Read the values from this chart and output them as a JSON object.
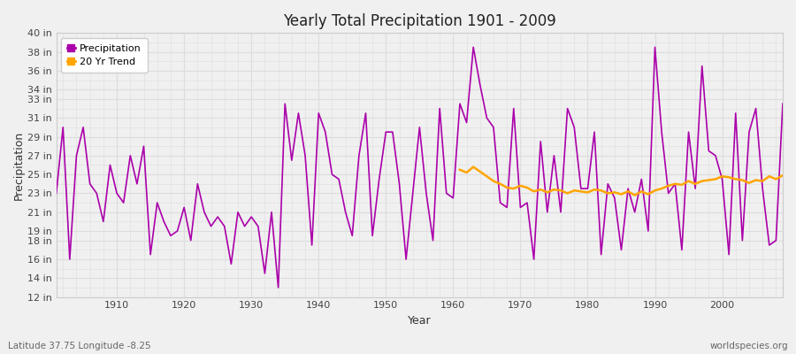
{
  "title": "Yearly Total Precipitation 1901 - 2009",
  "xlabel": "Year",
  "ylabel": "Precipitation",
  "footer_left": "Latitude 37.75 Longitude -8.25",
  "footer_right": "worldspecies.org",
  "precip_color": "#AA00AA",
  "trend_color": "#FFA500",
  "bg_color": "#F0F0F0",
  "plot_bg_color": "#F0F0F0",
  "grid_color": "#DDDDDD",
  "ylim_min": 12,
  "ylim_max": 40,
  "ytick_values": [
    12,
    14,
    16,
    18,
    19,
    21,
    23,
    25,
    27,
    29,
    31,
    33,
    34,
    36,
    38,
    40
  ],
  "ytick_labels": [
    "12 in",
    "14 in",
    "16 in",
    "18 in",
    "19 in",
    "21 in",
    "23 in",
    "25 in",
    "27 in",
    "29 in",
    "31 in",
    "33 in",
    "34 in",
    "36 in",
    "38 in",
    "40 in"
  ],
  "xtick_values": [
    1910,
    1920,
    1930,
    1940,
    1950,
    1960,
    1970,
    1980,
    1990,
    2000
  ],
  "xlim_min": 1901,
  "xlim_max": 2009,
  "years": [
    1901,
    1902,
    1903,
    1904,
    1905,
    1906,
    1907,
    1908,
    1909,
    1910,
    1911,
    1912,
    1913,
    1914,
    1915,
    1916,
    1917,
    1918,
    1919,
    1920,
    1921,
    1922,
    1923,
    1924,
    1925,
    1926,
    1927,
    1928,
    1929,
    1930,
    1931,
    1932,
    1933,
    1934,
    1935,
    1936,
    1937,
    1938,
    1939,
    1940,
    1941,
    1942,
    1943,
    1944,
    1945,
    1946,
    1947,
    1948,
    1949,
    1950,
    1951,
    1952,
    1953,
    1954,
    1955,
    1956,
    1957,
    1958,
    1959,
    1960,
    1961,
    1962,
    1963,
    1964,
    1965,
    1966,
    1967,
    1968,
    1969,
    1970,
    1971,
    1972,
    1973,
    1974,
    1975,
    1976,
    1977,
    1978,
    1979,
    1980,
    1981,
    1982,
    1983,
    1984,
    1985,
    1986,
    1987,
    1988,
    1989,
    1990,
    1991,
    1992,
    1993,
    1994,
    1995,
    1996,
    1997,
    1998,
    1999,
    2000,
    2001,
    2002,
    2003,
    2004,
    2005,
    2006,
    2007,
    2008,
    2009
  ],
  "precip": [
    23.0,
    30.0,
    16.0,
    27.0,
    30.0,
    24.0,
    23.0,
    20.0,
    26.0,
    23.0,
    22.0,
    27.0,
    24.0,
    28.0,
    16.5,
    22.0,
    20.0,
    18.5,
    19.0,
    21.5,
    18.0,
    24.0,
    21.0,
    19.5,
    20.5,
    19.5,
    15.5,
    21.0,
    19.5,
    20.5,
    19.5,
    14.5,
    21.0,
    13.0,
    32.5,
    26.5,
    31.5,
    27.0,
    17.5,
    31.5,
    29.5,
    25.0,
    24.5,
    21.0,
    18.5,
    27.0,
    31.5,
    18.5,
    24.5,
    29.5,
    29.5,
    24.0,
    16.0,
    23.0,
    30.0,
    23.0,
    18.0,
    32.0,
    23.0,
    22.5,
    32.5,
    30.5,
    38.5,
    34.5,
    31.0,
    30.0,
    22.0,
    21.5,
    32.0,
    21.5,
    22.0,
    16.0,
    28.5,
    21.0,
    27.0,
    21.0,
    32.0,
    30.0,
    23.5,
    23.5,
    29.5,
    16.5,
    24.0,
    22.5,
    17.0,
    23.5,
    21.0,
    24.5,
    19.0,
    38.5,
    29.5,
    23.0,
    24.0,
    17.0,
    29.5,
    23.5,
    36.5,
    27.5,
    27.0,
    24.5,
    16.5,
    31.5,
    18.0,
    29.5,
    32.0,
    23.5,
    17.5,
    18.0,
    32.5
  ],
  "trend_years": [
    1961,
    1962,
    1963,
    1964,
    1965,
    1966,
    1967,
    1968,
    1969,
    1970,
    1971,
    1972,
    1973,
    1974,
    1975,
    1976,
    1977,
    1978,
    1979,
    1980,
    1981,
    1982,
    1983,
    1984,
    1985,
    1986,
    1987,
    1988,
    1989,
    1990,
    1991,
    1992,
    1993,
    1994,
    1995,
    1996,
    1997,
    1998,
    1999,
    2000,
    2001,
    2002,
    2003,
    2004,
    2005,
    2006,
    2007,
    2008,
    2009
  ],
  "trend": [
    25.5,
    25.2,
    25.8,
    25.3,
    24.8,
    24.3,
    24.0,
    23.6,
    23.5,
    23.8,
    23.6,
    23.2,
    23.4,
    23.1,
    23.4,
    23.3,
    23.0,
    23.3,
    23.2,
    23.1,
    23.4,
    23.3,
    23.0,
    23.1,
    22.9,
    23.2,
    22.8,
    23.2,
    22.9,
    23.3,
    23.5,
    23.8,
    24.0,
    23.9,
    24.3,
    24.0,
    24.3,
    24.4,
    24.5,
    24.8,
    24.7,
    24.5,
    24.4,
    24.1,
    24.4,
    24.3,
    24.8,
    24.5,
    24.9
  ]
}
